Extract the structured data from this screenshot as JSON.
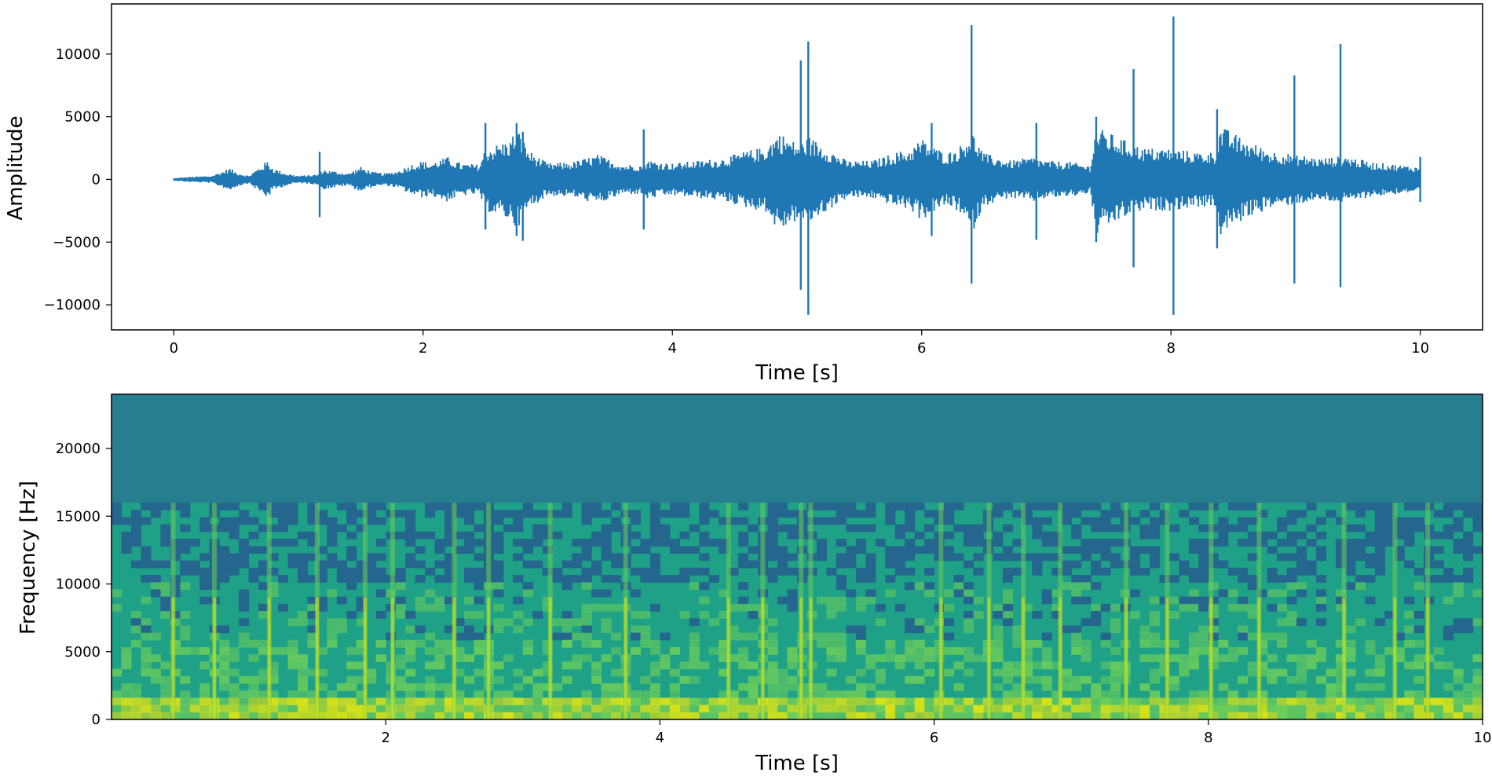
{
  "chart_data": [
    {
      "type": "line",
      "title": "",
      "xlabel": "Time [s]",
      "ylabel": "Amplitude",
      "xlim": [
        -0.5,
        10.5
      ],
      "ylim": [
        -12000,
        14000
      ],
      "x_ticks": [
        0,
        2,
        4,
        6,
        8,
        10
      ],
      "x_tick_labels": [
        "0",
        "2",
        "4",
        "6",
        "8",
        "10"
      ],
      "y_ticks": [
        -10000,
        -5000,
        0,
        5000,
        10000
      ],
      "y_tick_labels": [
        "−10000",
        "−5000",
        "0",
        "5000",
        "10000"
      ],
      "grid": false,
      "line_color": "#1f77b4",
      "envelope": {
        "t": [
          0,
          0.1,
          0.3,
          0.45,
          0.5,
          0.6,
          0.75,
          0.8,
          0.9,
          1.0,
          1.15,
          1.2,
          1.4,
          1.5,
          1.6,
          1.7,
          1.8,
          1.9,
          2.0,
          2.05,
          2.2,
          2.3,
          2.45,
          2.5,
          2.7,
          2.75,
          2.85,
          3.0,
          3.2,
          3.4,
          3.6,
          3.75,
          3.8,
          3.9,
          4.0,
          4.2,
          4.4,
          4.6,
          4.75,
          4.85,
          5.0,
          5.1,
          5.2,
          5.4,
          5.6,
          5.8,
          5.9,
          6.0,
          6.1,
          6.2,
          6.3,
          6.4,
          6.5,
          6.7,
          6.9,
          7.0,
          7.2,
          7.35,
          7.4,
          7.6,
          7.7,
          7.8,
          8.0,
          8.2,
          8.35,
          8.4,
          8.6,
          8.8,
          9.0,
          9.2,
          9.4,
          9.6,
          9.8,
          10.0
        ],
        "upper": [
          100,
          200,
          300,
          900,
          600,
          300,
          1500,
          900,
          500,
          300,
          400,
          800,
          500,
          1000,
          600,
          500,
          700,
          1200,
          1500,
          1300,
          1800,
          1300,
          1200,
          2500,
          3200,
          4200,
          2300,
          1300,
          1400,
          2000,
          1200,
          1200,
          1600,
          1400,
          1300,
          1500,
          1700,
          2300,
          2600,
          3800,
          2900,
          3400,
          2800,
          1500,
          1500,
          2200,
          2400,
          3300,
          2600,
          2100,
          2600,
          3900,
          2100,
          1500,
          1800,
          1500,
          1400,
          1100,
          4200,
          3300,
          2800,
          2500,
          2500,
          2200,
          2200,
          4300,
          3100,
          2300,
          2000,
          1700,
          1900,
          1400,
          1200,
          1000
        ],
        "lower": [
          -100,
          -200,
          -300,
          -900,
          -600,
          -300,
          -1500,
          -900,
          -500,
          -300,
          -400,
          -800,
          -500,
          -1000,
          -600,
          -500,
          -700,
          -1200,
          -1500,
          -1300,
          -1800,
          -1300,
          -1200,
          -2500,
          -3300,
          -4000,
          -2300,
          -1300,
          -1400,
          -2000,
          -1200,
          -1200,
          -1600,
          -1400,
          -1300,
          -1500,
          -1700,
          -2300,
          -2600,
          -4200,
          -3300,
          -3500,
          -2800,
          -1500,
          -1500,
          -2200,
          -2400,
          -3300,
          -2600,
          -2100,
          -2600,
          -4400,
          -2100,
          -1500,
          -1800,
          -1500,
          -1400,
          -1100,
          -4500,
          -3200,
          -2800,
          -2500,
          -2500,
          -2200,
          -2200,
          -4500,
          -3100,
          -2300,
          -2000,
          -1700,
          -1900,
          -1400,
          -1200,
          -1000
        ]
      },
      "spikes": [
        {
          "t": 1.17,
          "max": 2200,
          "min": -3000
        },
        {
          "t": 2.5,
          "max": 4500,
          "min": -4000
        },
        {
          "t": 2.75,
          "max": 4500,
          "min": -4500
        },
        {
          "t": 2.8,
          "max": 3800,
          "min": -4900
        },
        {
          "t": 3.77,
          "max": 4000,
          "min": -4000
        },
        {
          "t": 5.03,
          "max": 9500,
          "min": -8800
        },
        {
          "t": 5.09,
          "max": 11000,
          "min": -10800
        },
        {
          "t": 6.08,
          "max": 4500,
          "min": -4500
        },
        {
          "t": 6.4,
          "max": 12300,
          "min": -8300
        },
        {
          "t": 6.92,
          "max": 4500,
          "min": -4800
        },
        {
          "t": 7.4,
          "max": 5000,
          "min": -5000
        },
        {
          "t": 7.7,
          "max": 8800,
          "min": -7000
        },
        {
          "t": 8.02,
          "max": 13000,
          "min": -10800
        },
        {
          "t": 8.37,
          "max": 5600,
          "min": -5500
        },
        {
          "t": 8.99,
          "max": 8300,
          "min": -8300
        },
        {
          "t": 9.36,
          "max": 10800,
          "min": -8600
        },
        {
          "t": 10.0,
          "max": 1800,
          "min": -1800
        }
      ]
    },
    {
      "type": "heatmap",
      "title": "",
      "xlabel": "Time [s]",
      "ylabel": "Frequency [Hz]",
      "xlim": [
        0,
        10
      ],
      "ylim": [
        0,
        24000
      ],
      "x_ticks": [
        2,
        4,
        6,
        8,
        10
      ],
      "x_tick_labels": [
        "2",
        "4",
        "6",
        "8",
        "10"
      ],
      "y_ticks": [
        0,
        5000,
        10000,
        15000,
        20000
      ],
      "y_tick_labels": [
        "0",
        "5000",
        "10000",
        "15000",
        "20000"
      ],
      "colormap": "viridis",
      "colors": {
        "background_band": "#277e8e",
        "dark": "#24668d",
        "mid": "#1fa187",
        "bright": "#6ccd5a",
        "peak": "#d8e219"
      },
      "cutoff_hz": 16000,
      "transients_s": [
        0.45,
        0.75,
        1.15,
        1.5,
        1.85,
        2.05,
        2.5,
        2.75,
        3.2,
        3.75,
        4.5,
        4.75,
        5.03,
        5.1,
        6.05,
        6.4,
        6.65,
        6.92,
        7.4,
        7.7,
        8.02,
        8.37,
        8.99,
        9.36,
        9.6
      ]
    }
  ]
}
